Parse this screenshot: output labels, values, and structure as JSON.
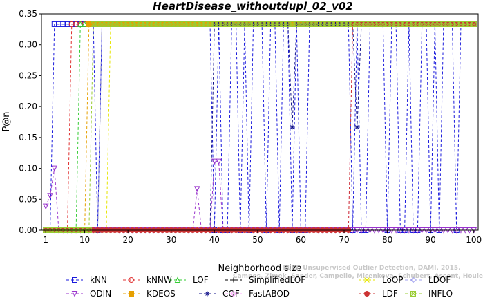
{
  "chart_data": {
    "type": "line",
    "title": "HeartDisease_withoutdupl_02_v02",
    "xlabel": "Neighborhood size",
    "ylabel": "P@n",
    "xlim": [
      0,
      101
    ],
    "ylim": [
      0,
      0.35
    ],
    "xticks": [
      1,
      10,
      20,
      30,
      40,
      50,
      60,
      70,
      80,
      90,
      100
    ],
    "yticks": [
      0.0,
      0.05,
      0.1,
      0.15,
      0.2,
      0.25,
      0.3,
      0.35
    ],
    "ytick_labels": [
      "0.00",
      "0.05",
      "0.10",
      "0.15",
      "0.20",
      "0.25",
      "0.30",
      "0.35"
    ],
    "grid": false,
    "legend_position": "bottom",
    "series": [
      {
        "name": "kNN",
        "color": "#1a1adc",
        "marker": "square",
        "x_high_from": 3,
        "value_high": 0.3333,
        "value_low": 0.0
      },
      {
        "name": "kNNW",
        "color": "#e03030",
        "marker": "circle",
        "x_high_from": 7,
        "value_high": 0.3333,
        "value_low": 0.0
      },
      {
        "name": "LOF",
        "color": "#33cc33",
        "marker": "triangle-up",
        "x_high_from": 9,
        "value_high": 0.3333,
        "value_low": 0.0
      },
      {
        "name": "SimplifiedLOF",
        "color": "#000000",
        "marker": "plus",
        "x_high_from": 14,
        "value_high": 0.3333,
        "value_low": 0.0
      },
      {
        "name": "LoOP",
        "color": "#e6e600",
        "marker": "x",
        "x_high_from": 16,
        "value_high": 0.3333,
        "value_low": 0.0
      },
      {
        "name": "LDOF",
        "color": "#a0a0ee",
        "marker": "diamond",
        "x_high_from": 14,
        "value_high": 0.3333,
        "value_low": 0.0
      },
      {
        "name": "ODIN",
        "color": "#9933cc",
        "marker": "triangle-down",
        "points": [
          [
            1,
            0.0385
          ],
          [
            2,
            0.0556
          ],
          [
            3,
            0.1
          ],
          [
            36,
            0.0667
          ],
          [
            40,
            0.1111
          ],
          [
            41,
            0.1111
          ]
        ],
        "value_low": 0.0
      },
      {
        "name": "KDEOS",
        "color": "#e6a000",
        "marker": "square-filled",
        "x_high_from": 11,
        "value_high": 0.3333,
        "value_low": 0.0
      },
      {
        "name": "COF",
        "color": "#10108a",
        "marker": "asterisk",
        "x_high_from": 40,
        "value_high": 0.3333,
        "value_low": 0.0,
        "extra_points": [
          [
            58,
            0.1667
          ],
          [
            73,
            0.1667
          ]
        ]
      },
      {
        "name": "FastABOD",
        "color": "#ffaaff",
        "marker": "diamond",
        "x_high_from": 72,
        "value_high": 0.3333,
        "value_low": 0.0
      },
      {
        "name": "LDF",
        "color": "#cc3333",
        "marker": "circle-filled",
        "x_high_from": 72,
        "value_high": 0.3333,
        "value_low": 0.0
      },
      {
        "name": "INFLO",
        "color": "#99cc33",
        "marker": "square-x",
        "x_high_from": 12,
        "value_high": 0.3333,
        "value_low": 0.0
      }
    ]
  },
  "watermark": {
    "line1": "ELKI, Unsupervised Outlier Detection, DAMI, 2015.",
    "line2": "Campos, Zimek, Sander, Campello, Micenkova, Schubert, Assent, Houle"
  }
}
